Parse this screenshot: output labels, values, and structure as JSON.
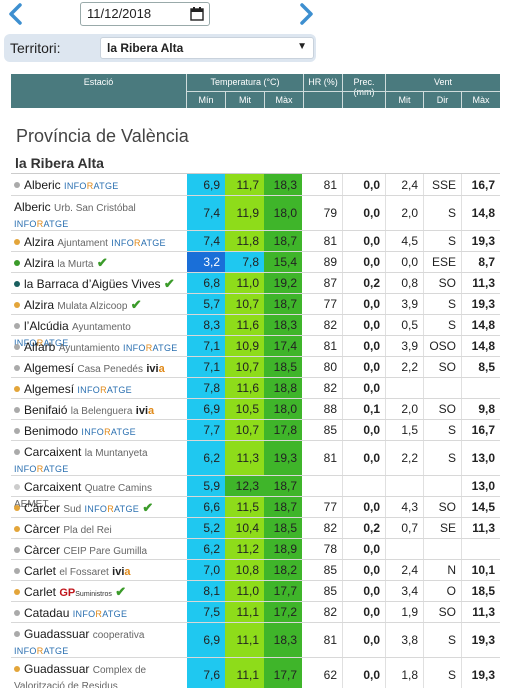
{
  "date": "11/12/2018",
  "territori": {
    "label": "Territori:",
    "selected": "la Ribera Alta"
  },
  "header": {
    "estacio": "Estació",
    "temperatura": "Temperatura (°C)",
    "hr": "HR (%)",
    "prec": "Prec. (mm)",
    "vent": "Vent",
    "min": "Mín",
    "mit": "Mit",
    "max": "Màx",
    "vmit": "Mit",
    "dir": "Dir",
    "vmax": "Màx"
  },
  "province": "Província de València",
  "comarca": "la Ribera Alta",
  "colors": {
    "cyan": "#1fc8f0",
    "lightgreen": "#8edc1a",
    "green": "#3fb52a",
    "blue": "#1a6fd8",
    "accent": "#4a7a7e"
  },
  "rows": [
    {
      "dot": "#aaaaaa",
      "name": "Alberic",
      "sub": "",
      "src": "infor",
      "srcline": "same",
      "check": false,
      "min": "6,9",
      "mit": "11,7",
      "max": "18,3",
      "hr": "81",
      "prec": "0,0",
      "vmit": "2,4",
      "dir": "SSE",
      "vmax": "16,7",
      "minc": "cyan",
      "mitc": "lightgreen",
      "maxc": "green",
      "h": 22
    },
    {
      "dot": "",
      "name": "Alberic",
      "sub": "Urb. San Cristóbal",
      "src": "infor",
      "srcline": "next",
      "check": false,
      "min": "7,4",
      "mit": "11,9",
      "max": "18,0",
      "hr": "79",
      "prec": "0,0",
      "vmit": "2,0",
      "dir": "S",
      "vmax": "14,8",
      "minc": "cyan",
      "mitc": "lightgreen",
      "maxc": "green",
      "h": 35
    },
    {
      "dot": "#e3a53a",
      "name": "Alzira",
      "sub": "Ajuntament",
      "src": "infor",
      "srcline": "same",
      "check": false,
      "min": "7,4",
      "mit": "11,8",
      "max": "18,7",
      "hr": "81",
      "prec": "0,0",
      "vmit": "4,5",
      "dir": "S",
      "vmax": "19,3",
      "minc": "cyan",
      "mitc": "lightgreen",
      "maxc": "green",
      "h": 21
    },
    {
      "dot": "#3b9b2a",
      "name": "Alzira",
      "sub": "la Murta",
      "src": "",
      "srcline": "same",
      "check": true,
      "min": "3,2",
      "mit": "7,8",
      "max": "15,4",
      "hr": "89",
      "prec": "0,0",
      "vmit": "0,0",
      "dir": "ESE",
      "vmax": "8,7",
      "minc": "blue",
      "mitc": "cyan",
      "maxc": "green",
      "h": 21
    },
    {
      "dot": "#1a5f5f",
      "name": "la Barraca d’Aigües Vives",
      "sub": "",
      "src": "",
      "srcline": "same",
      "check": true,
      "min": "6,8",
      "mit": "11,0",
      "max": "19,2",
      "hr": "87",
      "prec": "0,2",
      "vmit": "0,8",
      "dir": "SO",
      "vmax": "11,3",
      "minc": "cyan",
      "mitc": "lightgreen",
      "maxc": "green",
      "h": 21
    },
    {
      "dot": "#e3a53a",
      "name": "Alzira",
      "sub": "Mulata Alzicoop",
      "src": "",
      "srcline": "same",
      "check": true,
      "min": "5,7",
      "mit": "10,7",
      "max": "18,7",
      "hr": "77",
      "prec": "0,0",
      "vmit": "3,9",
      "dir": "S",
      "vmax": "19,3",
      "minc": "cyan",
      "mitc": "lightgreen",
      "maxc": "green",
      "h": 21
    },
    {
      "dot": "#aaaaaa",
      "name": "l’Alcúdia",
      "sub": "Ayuntamento",
      "src": "infor",
      "srcline": "same",
      "check": false,
      "min": "8,3",
      "mit": "11,6",
      "max": "18,3",
      "hr": "82",
      "prec": "0,0",
      "vmit": "0,5",
      "dir": "S",
      "vmax": "14,8",
      "minc": "cyan",
      "mitc": "lightgreen",
      "maxc": "green",
      "h": 21
    },
    {
      "dot": "#aaaaaa",
      "name": "Alfarb",
      "sub": "Ayuntamiento",
      "src": "infor",
      "srcline": "same",
      "check": false,
      "min": "7,1",
      "mit": "10,9",
      "max": "17,4",
      "hr": "81",
      "prec": "0,0",
      "vmit": "3,9",
      "dir": "OSO",
      "vmax": "14,8",
      "minc": "cyan",
      "mitc": "lightgreen",
      "maxc": "green",
      "h": 21
    },
    {
      "dot": "#aaaaaa",
      "name": "Algemesí",
      "sub": "Casa Penedés",
      "src": "ivia",
      "srcline": "same",
      "check": false,
      "min": "7,1",
      "mit": "10,7",
      "max": "18,5",
      "hr": "80",
      "prec": "0,0",
      "vmit": "2,2",
      "dir": "SO",
      "vmax": "8,5",
      "minc": "cyan",
      "mitc": "lightgreen",
      "maxc": "green",
      "h": 21
    },
    {
      "dot": "#e3a53a",
      "name": "Algemesí",
      "sub": "",
      "src": "infor",
      "srcline": "same",
      "check": false,
      "min": "7,8",
      "mit": "11,6",
      "max": "18,8",
      "hr": "82",
      "prec": "0,0",
      "vmit": "",
      "dir": "",
      "vmax": "",
      "minc": "cyan",
      "mitc": "lightgreen",
      "maxc": "green",
      "h": 21
    },
    {
      "dot": "#aaaaaa",
      "name": "Benifaió",
      "sub": "la Belenguera",
      "src": "ivia",
      "srcline": "same",
      "check": false,
      "min": "6,9",
      "mit": "10,5",
      "max": "18,0",
      "hr": "88",
      "prec": "0,1",
      "vmit": "2,0",
      "dir": "SO",
      "vmax": "9,8",
      "minc": "cyan",
      "mitc": "lightgreen",
      "maxc": "green",
      "h": 21
    },
    {
      "dot": "#aaaaaa",
      "name": "Benimodo",
      "sub": "",
      "src": "infor",
      "srcline": "same",
      "check": false,
      "min": "7,7",
      "mit": "10,7",
      "max": "17,8",
      "hr": "85",
      "prec": "0,0",
      "vmit": "1,5",
      "dir": "S",
      "vmax": "16,7",
      "minc": "cyan",
      "mitc": "lightgreen",
      "maxc": "green",
      "h": 21
    },
    {
      "dot": "#aaaaaa",
      "name": "Carcaixent",
      "sub": "la Muntanyeta",
      "src": "infor",
      "srcline": "next",
      "check": false,
      "min": "6,2",
      "mit": "11,3",
      "max": "19,3",
      "hr": "81",
      "prec": "0,0",
      "vmit": "2,2",
      "dir": "S",
      "vmax": "13,0",
      "minc": "cyan",
      "mitc": "lightgreen",
      "maxc": "green",
      "h": 35
    },
    {
      "dot": "#cccccc",
      "name": "Carcaixent",
      "sub": "Quatre Camins AEMET",
      "src": "",
      "srcline": "same",
      "check": false,
      "min": "5,9",
      "mit": "12,3",
      "max": "18,7",
      "hr": "",
      "prec": "",
      "vmit": "",
      "dir": "",
      "vmax": "13,0",
      "minc": "cyan",
      "mitc": "green",
      "maxc": "green",
      "h": 21
    },
    {
      "dot": "#e3a53a",
      "name": "Càrcer",
      "sub": "Sud",
      "src": "infor",
      "srcline": "same",
      "check": true,
      "min": "6,6",
      "mit": "11,5",
      "max": "18,7",
      "hr": "77",
      "prec": "0,0",
      "vmit": "4,3",
      "dir": "SO",
      "vmax": "14,5",
      "minc": "cyan",
      "mitc": "lightgreen",
      "maxc": "green",
      "h": 21
    },
    {
      "dot": "#e3a53a",
      "name": "Càrcer",
      "sub": "Pla del Rei",
      "src": "",
      "srcline": "same",
      "check": false,
      "min": "5,2",
      "mit": "10,4",
      "max": "18,5",
      "hr": "82",
      "prec": "0,2",
      "vmit": "0,7",
      "dir": "SE",
      "vmax": "11,3",
      "minc": "cyan",
      "mitc": "lightgreen",
      "maxc": "green",
      "h": 21
    },
    {
      "dot": "#aaaaaa",
      "name": "Càrcer",
      "sub": "CEIP Pare Gumilla",
      "src": "",
      "srcline": "same",
      "check": false,
      "min": "6,2",
      "mit": "11,2",
      "max": "18,9",
      "hr": "78",
      "prec": "0,0",
      "vmit": "",
      "dir": "",
      "vmax": "",
      "minc": "cyan",
      "mitc": "lightgreen",
      "maxc": "green",
      "h": 21
    },
    {
      "dot": "#aaaaaa",
      "name": "Carlet",
      "sub": "el Fossaret",
      "src": "ivia",
      "srcline": "same",
      "check": false,
      "min": "7,0",
      "mit": "10,8",
      "max": "18,2",
      "hr": "85",
      "prec": "0,0",
      "vmit": "2,4",
      "dir": "N",
      "vmax": "10,1",
      "minc": "cyan",
      "mitc": "lightgreen",
      "maxc": "green",
      "h": 21
    },
    {
      "dot": "#e3a53a",
      "name": "Carlet",
      "sub": "",
      "src": "gp",
      "srcline": "same",
      "check": true,
      "min": "8,1",
      "mit": "11,0",
      "max": "17,7",
      "hr": "85",
      "prec": "0,0",
      "vmit": "3,4",
      "dir": "O",
      "vmax": "18,5",
      "minc": "cyan",
      "mitc": "lightgreen",
      "maxc": "green",
      "h": 21
    },
    {
      "dot": "#aaaaaa",
      "name": "Catadau",
      "sub": "",
      "src": "infor",
      "srcline": "same",
      "check": false,
      "min": "7,5",
      "mit": "11,1",
      "max": "17,2",
      "hr": "82",
      "prec": "0,0",
      "vmit": "1,9",
      "dir": "SO",
      "vmax": "11,3",
      "minc": "cyan",
      "mitc": "lightgreen",
      "maxc": "green",
      "h": 21
    },
    {
      "dot": "#aaaaaa",
      "name": "Guadassuar",
      "sub": "cooperativa",
      "src": "infor",
      "srcline": "next",
      "check": false,
      "min": "6,9",
      "mit": "11,1",
      "max": "18,3",
      "hr": "81",
      "prec": "0,0",
      "vmit": "3,8",
      "dir": "S",
      "vmax": "19,3",
      "minc": "cyan",
      "mitc": "lightgreen",
      "maxc": "green",
      "h": 35
    },
    {
      "dot": "#e3a53a",
      "name": "Guadassuar",
      "sub": "Complex de Valorització de Residus",
      "src": "",
      "srcline": "same",
      "check": false,
      "min": "7,6",
      "mit": "11,1",
      "max": "17,7",
      "hr": "62",
      "prec": "0,0",
      "vmit": "1,8",
      "dir": "S",
      "vmax": "19,3",
      "minc": "cyan",
      "mitc": "lightgreen",
      "maxc": "green",
      "h": 35
    }
  ]
}
